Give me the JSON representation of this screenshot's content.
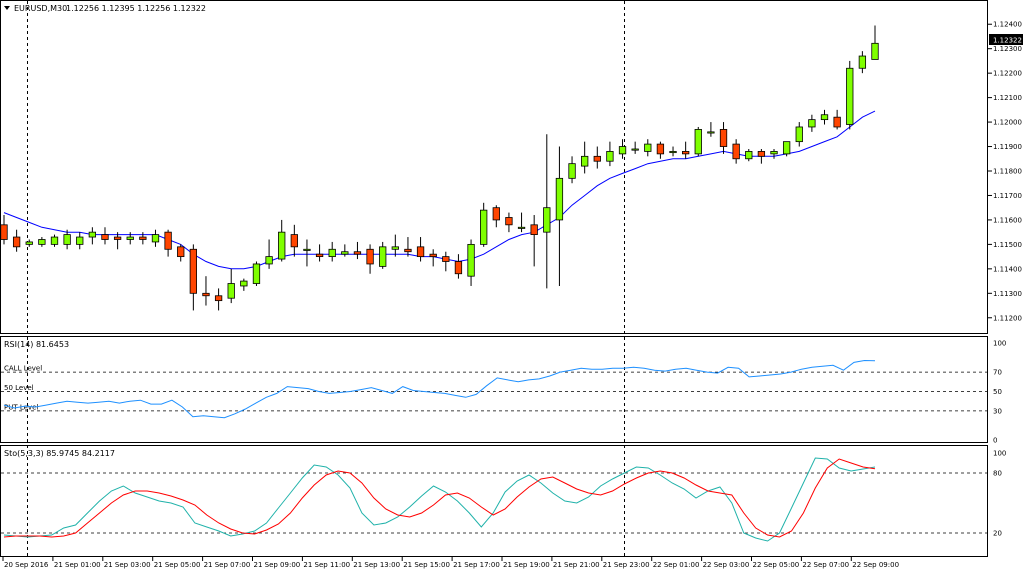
{
  "window": {
    "symbol_title": "EURUSD,M30",
    "ohlc_readout": "1.12256 1.12395 1.12256 1.12322",
    "current_price_label": "1.12322",
    "dropdown_icon": "triangle-down-icon"
  },
  "colors": {
    "bull_body": "#7fff00",
    "bear_body": "#ff4500",
    "wick": "#000000",
    "ma_line": "#0000ff",
    "rsi_line": "#1e90ff",
    "stoch_main": "#20b2aa",
    "stoch_signal": "#ff0000",
    "grid_dash": "#000000",
    "panel_border": "#000000"
  },
  "x_axis": {
    "labels": [
      "20 Sep 2016",
      "21 Sep 01:00",
      "21 Sep 03:00",
      "21 Sep 05:00",
      "21 Sep 07:00",
      "21 Sep 09:00",
      "21 Sep 11:00",
      "21 Sep 13:00",
      "21 Sep 15:00",
      "21 Sep 17:00",
      "21 Sep 19:00",
      "21 Sep 21:00",
      "21 Sep 23:00",
      "22 Sep 01:00",
      "22 Sep 03:00",
      "22 Sep 05:00",
      "22 Sep 07:00",
      "22 Sep 09:00"
    ]
  },
  "chart_data": [
    {
      "type": "candlestick",
      "title": "EURUSD,M30",
      "ylim": [
        1.1115,
        1.1245
      ],
      "y_ticks": [
        "1.12400",
        "1.12300",
        "1.12200",
        "1.12100",
        "1.12000",
        "1.11900",
        "1.11800",
        "1.11700",
        "1.11600",
        "1.11500",
        "1.11400",
        "1.11300",
        "1.11200"
      ],
      "candles": [
        {
          "o": 1.1158,
          "h": 1.1162,
          "c": 1.1152,
          "l": 1.115
        },
        {
          "o": 1.1153,
          "h": 1.1156,
          "c": 1.1149,
          "l": 1.1147
        },
        {
          "o": 1.115,
          "h": 1.1152,
          "c": 1.1151,
          "l": 1.1149
        },
        {
          "o": 1.115,
          "h": 1.1153,
          "c": 1.1152,
          "l": 1.1149
        },
        {
          "o": 1.115,
          "h": 1.1154,
          "c": 1.1153,
          "l": 1.1149
        },
        {
          "o": 1.115,
          "h": 1.1156,
          "c": 1.1154,
          "l": 1.1148
        },
        {
          "o": 1.115,
          "h": 1.1155,
          "c": 1.1153,
          "l": 1.1148
        },
        {
          "o": 1.1153,
          "h": 1.1157,
          "c": 1.1155,
          "l": 1.115
        },
        {
          "o": 1.1154,
          "h": 1.1157,
          "c": 1.1152,
          "l": 1.115
        },
        {
          "o": 1.1153,
          "h": 1.1155,
          "c": 1.1152,
          "l": 1.1148
        },
        {
          "o": 1.1152,
          "h": 1.1155,
          "c": 1.1153,
          "l": 1.115
        },
        {
          "o": 1.1153,
          "h": 1.1155,
          "c": 1.1152,
          "l": 1.115
        },
        {
          "o": 1.1151,
          "h": 1.1156,
          "c": 1.1154,
          "l": 1.1149
        },
        {
          "o": 1.1155,
          "h": 1.1156,
          "c": 1.1148,
          "l": 1.1145
        },
        {
          "o": 1.1149,
          "h": 1.115,
          "c": 1.1145,
          "l": 1.1143
        },
        {
          "o": 1.1148,
          "h": 1.115,
          "c": 1.113,
          "l": 1.1123
        },
        {
          "o": 1.113,
          "h": 1.1137,
          "c": 1.1129,
          "l": 1.1125
        },
        {
          "o": 1.1129,
          "h": 1.1132,
          "c": 1.1127,
          "l": 1.1123
        },
        {
          "o": 1.1128,
          "h": 1.114,
          "c": 1.1134,
          "l": 1.1126
        },
        {
          "o": 1.1133,
          "h": 1.1136,
          "c": 1.1135,
          "l": 1.1131
        },
        {
          "o": 1.1134,
          "h": 1.1143,
          "c": 1.1142,
          "l": 1.1133
        },
        {
          "o": 1.1142,
          "h": 1.1152,
          "c": 1.1145,
          "l": 1.114
        },
        {
          "o": 1.1144,
          "h": 1.116,
          "c": 1.1155,
          "l": 1.1143
        },
        {
          "o": 1.1154,
          "h": 1.1158,
          "c": 1.1149,
          "l": 1.1145
        },
        {
          "o": 1.1148,
          "h": 1.1152,
          "c": 1.1148,
          "l": 1.1141
        },
        {
          "o": 1.1146,
          "h": 1.115,
          "c": 1.1145,
          "l": 1.1143
        },
        {
          "o": 1.1145,
          "h": 1.1151,
          "c": 1.1148,
          "l": 1.1143
        },
        {
          "o": 1.1146,
          "h": 1.115,
          "c": 1.1147,
          "l": 1.1145
        },
        {
          "o": 1.1147,
          "h": 1.1151,
          "c": 1.1146,
          "l": 1.1144
        },
        {
          "o": 1.1148,
          "h": 1.115,
          "c": 1.1142,
          "l": 1.1138
        },
        {
          "o": 1.1141,
          "h": 1.1151,
          "c": 1.1149,
          "l": 1.114
        },
        {
          "o": 1.1148,
          "h": 1.1154,
          "c": 1.1149,
          "l": 1.1145
        },
        {
          "o": 1.1148,
          "h": 1.1153,
          "c": 1.1147,
          "l": 1.1145
        },
        {
          "o": 1.1149,
          "h": 1.1153,
          "c": 1.1145,
          "l": 1.1143
        },
        {
          "o": 1.1146,
          "h": 1.1148,
          "c": 1.1145,
          "l": 1.1141
        },
        {
          "o": 1.1145,
          "h": 1.1147,
          "c": 1.1143,
          "l": 1.1139
        },
        {
          "o": 1.1143,
          "h": 1.1146,
          "c": 1.1138,
          "l": 1.1136
        },
        {
          "o": 1.1137,
          "h": 1.1152,
          "c": 1.115,
          "l": 1.1133
        },
        {
          "o": 1.115,
          "h": 1.1167,
          "c": 1.1164,
          "l": 1.1149
        },
        {
          "o": 1.1165,
          "h": 1.1166,
          "c": 1.116,
          "l": 1.1157
        },
        {
          "o": 1.1161,
          "h": 1.1163,
          "c": 1.1158,
          "l": 1.1155
        },
        {
          "o": 1.1157,
          "h": 1.1163,
          "c": 1.1157,
          "l": 1.1155
        },
        {
          "o": 1.1158,
          "h": 1.1162,
          "c": 1.1154,
          "l": 1.1141
        },
        {
          "o": 1.1155,
          "h": 1.1195,
          "c": 1.1165,
          "l": 1.1132
        },
        {
          "o": 1.116,
          "h": 1.119,
          "c": 1.1177,
          "l": 1.1133
        },
        {
          "o": 1.1177,
          "h": 1.1186,
          "c": 1.1183,
          "l": 1.1175
        },
        {
          "o": 1.1182,
          "h": 1.1192,
          "c": 1.1186,
          "l": 1.1179
        },
        {
          "o": 1.1186,
          "h": 1.119,
          "c": 1.1184,
          "l": 1.1181
        },
        {
          "o": 1.1184,
          "h": 1.1192,
          "c": 1.1188,
          "l": 1.1182
        },
        {
          "o": 1.1187,
          "h": 1.1193,
          "c": 1.119,
          "l": 1.1185
        },
        {
          "o": 1.1189,
          "h": 1.1192,
          "c": 1.1189,
          "l": 1.1187
        },
        {
          "o": 1.1188,
          "h": 1.1193,
          "c": 1.1191,
          "l": 1.1186
        },
        {
          "o": 1.1191,
          "h": 1.1192,
          "c": 1.1187,
          "l": 1.1185
        },
        {
          "o": 1.1188,
          "h": 1.119,
          "c": 1.1188,
          "l": 1.1186
        },
        {
          "o": 1.1188,
          "h": 1.1192,
          "c": 1.1187,
          "l": 1.1185
        },
        {
          "o": 1.1187,
          "h": 1.1198,
          "c": 1.1197,
          "l": 1.1186
        },
        {
          "o": 1.1196,
          "h": 1.12,
          "c": 1.1196,
          "l": 1.1194
        },
        {
          "o": 1.1197,
          "h": 1.12,
          "c": 1.119,
          "l": 1.1187
        },
        {
          "o": 1.1191,
          "h": 1.1193,
          "c": 1.1185,
          "l": 1.1183
        },
        {
          "o": 1.1185,
          "h": 1.1189,
          "c": 1.1188,
          "l": 1.1184
        },
        {
          "o": 1.1188,
          "h": 1.1189,
          "c": 1.1186,
          "l": 1.1183
        },
        {
          "o": 1.1187,
          "h": 1.1189,
          "c": 1.1188,
          "l": 1.1185
        },
        {
          "o": 1.1187,
          "h": 1.1192,
          "c": 1.1192,
          "l": 1.1186
        },
        {
          "o": 1.1192,
          "h": 1.12,
          "c": 1.1198,
          "l": 1.119
        },
        {
          "o": 1.1198,
          "h": 1.1203,
          "c": 1.1201,
          "l": 1.1196
        },
        {
          "o": 1.1201,
          "h": 1.1205,
          "c": 1.1203,
          "l": 1.1199
        },
        {
          "o": 1.1202,
          "h": 1.1205,
          "c": 1.1198,
          "l": 1.1197
        },
        {
          "o": 1.1199,
          "h": 1.1225,
          "c": 1.1222,
          "l": 1.1197
        },
        {
          "o": 1.1222,
          "h": 1.1229,
          "c": 1.1227,
          "l": 1.122
        },
        {
          "o": 1.12256,
          "h": 1.12395,
          "c": 1.12322,
          "l": 1.12256
        }
      ],
      "moving_average": [
        1.1163,
        1.1161,
        1.1159,
        1.1157,
        1.1156,
        1.1155,
        1.1155,
        1.1154,
        1.1154,
        1.1154,
        1.1154,
        1.1154,
        1.1154,
        1.1152,
        1.115,
        1.1146,
        1.1143,
        1.1141,
        1.114,
        1.114,
        1.1141,
        1.1143,
        1.1145,
        1.1146,
        1.1146,
        1.1146,
        1.1146,
        1.1146,
        1.1146,
        1.1146,
        1.1146,
        1.1146,
        1.1146,
        1.1145,
        1.1145,
        1.1144,
        1.1143,
        1.1144,
        1.1146,
        1.1149,
        1.1152,
        1.1154,
        1.1155,
        1.1158,
        1.1161,
        1.1166,
        1.117,
        1.1174,
        1.1177,
        1.1179,
        1.1181,
        1.1183,
        1.1184,
        1.1185,
        1.1185,
        1.1186,
        1.1187,
        1.1188,
        1.1187,
        1.1186,
        1.1186,
        1.1186,
        1.1187,
        1.1188,
        1.119,
        1.1192,
        1.1194,
        1.1198,
        1.1202,
        1.12045
      ]
    },
    {
      "type": "line",
      "title": "RSI(14) 81.6453",
      "ylim": [
        0,
        100
      ],
      "y_ticks": [
        "100",
        "70",
        "50",
        "30",
        "0"
      ],
      "levels": [
        {
          "label": "CALL Level",
          "value": 70
        },
        {
          "label": "50 Level",
          "value": 50
        },
        {
          "label": "PUT Level",
          "value": 30
        }
      ],
      "series": [
        {
          "values": [
            36,
            33,
            35,
            34,
            36,
            38,
            40,
            39,
            38,
            39,
            40,
            38,
            40,
            41,
            37,
            37,
            41,
            34,
            24,
            25,
            24,
            23,
            27,
            32,
            38,
            44,
            48,
            55,
            54,
            53,
            50,
            48,
            49,
            50,
            52,
            54,
            51,
            48,
            55,
            51,
            50,
            49,
            48,
            46,
            44,
            47,
            56,
            64,
            62,
            60,
            62,
            63,
            66,
            70,
            72,
            74,
            73,
            73,
            74,
            74,
            75,
            74,
            72,
            71,
            73,
            74,
            72,
            70,
            69,
            75,
            74,
            65,
            66,
            67,
            68,
            70,
            73,
            75,
            76,
            77,
            72,
            80,
            82,
            81.6453
          ]
        }
      ]
    },
    {
      "type": "line",
      "title": "Sto(5,3,3) 85.9745 84.2117",
      "ylim": [
        0,
        100
      ],
      "y_ticks": [
        "100",
        "80",
        "20"
      ],
      "series": [
        {
          "name": "main",
          "values": [
            18,
            17,
            16,
            17,
            18,
            25,
            28,
            40,
            52,
            62,
            67,
            60,
            56,
            52,
            50,
            46,
            30,
            26,
            22,
            17,
            19,
            22,
            30,
            45,
            60,
            75,
            88,
            86,
            78,
            65,
            40,
            28,
            30,
            36,
            46,
            57,
            67,
            61,
            52,
            40,
            26,
            40,
            61,
            72,
            78,
            70,
            60,
            52,
            50,
            56,
            67,
            74,
            80,
            86,
            85,
            78,
            70,
            64,
            55,
            62,
            66,
            50,
            20,
            15,
            12,
            20,
            45,
            70,
            95,
            94,
            85,
            82,
            84,
            85.9745
          ]
        },
        {
          "name": "signal",
          "values": [
            16,
            17,
            17,
            17,
            16,
            17,
            20,
            30,
            40,
            50,
            58,
            62,
            62,
            60,
            57,
            53,
            48,
            38,
            30,
            24,
            20,
            19,
            23,
            29,
            40,
            55,
            68,
            78,
            82,
            80,
            70,
            55,
            44,
            38,
            36,
            40,
            48,
            58,
            60,
            55,
            46,
            38,
            44,
            56,
            66,
            74,
            76,
            70,
            64,
            60,
            58,
            62,
            69,
            75,
            80,
            82,
            80,
            75,
            68,
            62,
            60,
            58,
            40,
            25,
            18,
            16,
            22,
            40,
            65,
            85,
            94,
            90,
            86,
            84.2117
          ]
        }
      ]
    }
  ]
}
